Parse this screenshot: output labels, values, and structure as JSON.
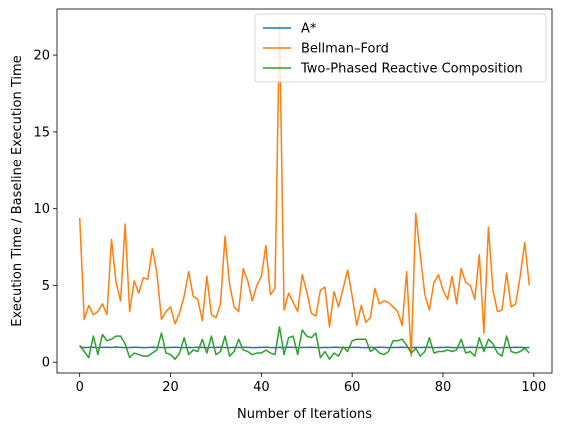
{
  "chart_data": {
    "type": "line",
    "title": "",
    "xlabel": "Number of Iterations",
    "ylabel": "Execution Time / Baseline Execution Time",
    "xlim": [
      -5,
      104
    ],
    "ylim": [
      -0.7,
      23.0
    ],
    "xticks": [
      0,
      20,
      40,
      60,
      80,
      100
    ],
    "yticks": [
      0,
      5,
      10,
      15,
      20
    ],
    "grid": false,
    "legend_position": "upper-right",
    "x": [
      0,
      1,
      2,
      3,
      4,
      5,
      6,
      7,
      8,
      9,
      10,
      11,
      12,
      13,
      14,
      15,
      16,
      17,
      18,
      19,
      20,
      21,
      22,
      23,
      24,
      25,
      26,
      27,
      28,
      29,
      30,
      31,
      32,
      33,
      34,
      35,
      36,
      37,
      38,
      39,
      40,
      41,
      42,
      43,
      44,
      45,
      46,
      47,
      48,
      49,
      50,
      51,
      52,
      53,
      54,
      55,
      56,
      57,
      58,
      59,
      60,
      61,
      62,
      63,
      64,
      65,
      66,
      67,
      68,
      69,
      70,
      71,
      72,
      73,
      74,
      75,
      76,
      77,
      78,
      79,
      80,
      81,
      82,
      83,
      84,
      85,
      86,
      87,
      88,
      89,
      90,
      91,
      92,
      93,
      94,
      95,
      96,
      97,
      98,
      99
    ],
    "series": [
      {
        "name": "A*",
        "color": "#1f77b4",
        "values": [
          1.0,
          0.95,
          0.97,
          0.98,
          0.95,
          0.97,
          0.98,
          0.96,
          0.99,
          0.97,
          0.95,
          0.96,
          0.98,
          0.97,
          0.95,
          0.96,
          0.98,
          0.97,
          0.96,
          0.95,
          0.97,
          0.98,
          0.96,
          0.95,
          0.97,
          0.96,
          0.98,
          0.97,
          0.95,
          0.96,
          0.97,
          0.98,
          0.96,
          0.95,
          0.97,
          0.96,
          0.98,
          0.97,
          0.95,
          0.96,
          0.97,
          0.98,
          0.96,
          0.95,
          0.97,
          0.96,
          0.98,
          0.97,
          0.95,
          0.96,
          0.97,
          0.98,
          0.96,
          0.95,
          0.97,
          0.96,
          0.98,
          0.97,
          0.95,
          0.96,
          0.97,
          0.98,
          0.96,
          0.95,
          0.97,
          0.96,
          0.98,
          0.97,
          0.95,
          0.96,
          0.97,
          0.98,
          0.96,
          0.95,
          0.97,
          0.96,
          0.98,
          0.97,
          0.95,
          0.96,
          0.97,
          0.98,
          0.96,
          0.95,
          0.97,
          0.96,
          0.98,
          0.97,
          0.95,
          0.96,
          0.97,
          0.98,
          0.96,
          0.95,
          0.97,
          0.96,
          0.98,
          0.97,
          0.95,
          0.96
        ]
      },
      {
        "name": "Bellman–Ford",
        "color": "#ff7f0e",
        "values": [
          9.4,
          2.8,
          3.7,
          3.1,
          3.3,
          3.8,
          3.1,
          8.0,
          5.2,
          4.0,
          9.0,
          3.3,
          5.3,
          4.5,
          5.5,
          5.4,
          7.4,
          5.8,
          2.8,
          3.3,
          3.6,
          2.5,
          3.2,
          4.3,
          5.9,
          4.3,
          4.1,
          2.7,
          5.6,
          3.1,
          2.9,
          3.8,
          8.2,
          5.1,
          3.6,
          3.3,
          6.1,
          5.3,
          4.0,
          5.0,
          5.6,
          7.6,
          4.4,
          4.8,
          22.0,
          3.4,
          4.5,
          3.9,
          3.3,
          5.7,
          4.6,
          3.2,
          3.0,
          4.7,
          4.9,
          2.3,
          4.6,
          3.6,
          4.8,
          6.0,
          4.3,
          2.4,
          3.7,
          2.6,
          2.9,
          4.8,
          3.8,
          4.0,
          3.9,
          3.6,
          3.3,
          2.4,
          5.9,
          0.4,
          9.7,
          7.0,
          4.4,
          3.4,
          5.2,
          5.7,
          4.7,
          4.1,
          5.6,
          3.8,
          6.1,
          5.2,
          5.0,
          4.1,
          7.0,
          1.9,
          8.8,
          4.7,
          3.3,
          3.4,
          5.8,
          3.6,
          3.8,
          5.6,
          7.8,
          5.0
        ]
      },
      {
        "name": "Two-Phased Reactive Composition",
        "color": "#2ca02c",
        "values": [
          1.1,
          0.7,
          0.3,
          1.7,
          0.5,
          1.8,
          1.4,
          1.5,
          1.7,
          1.7,
          1.2,
          0.3,
          0.6,
          0.5,
          0.4,
          0.4,
          0.6,
          0.8,
          1.9,
          0.6,
          0.5,
          0.2,
          0.6,
          1.6,
          0.5,
          0.8,
          0.7,
          1.5,
          0.6,
          1.7,
          0.5,
          0.7,
          1.7,
          0.4,
          0.7,
          1.5,
          0.8,
          0.7,
          0.5,
          0.6,
          0.6,
          0.8,
          0.6,
          0.5,
          2.3,
          0.5,
          1.6,
          1.7,
          0.5,
          2.1,
          1.7,
          1.6,
          1.9,
          0.3,
          0.7,
          0.2,
          0.6,
          0.4,
          1.0,
          0.7,
          1.4,
          1.5,
          1.5,
          1.5,
          0.7,
          0.9,
          0.6,
          0.5,
          0.7,
          1.4,
          1.4,
          1.5,
          1.1,
          0.6,
          0.9,
          0.4,
          0.7,
          1.6,
          0.6,
          0.7,
          0.7,
          0.8,
          0.7,
          0.8,
          1.5,
          0.6,
          0.7,
          0.4,
          1.6,
          0.7,
          1.5,
          1.2,
          0.6,
          0.4,
          1.7,
          0.7,
          0.6,
          0.7,
          0.9,
          0.6
        ]
      }
    ]
  }
}
